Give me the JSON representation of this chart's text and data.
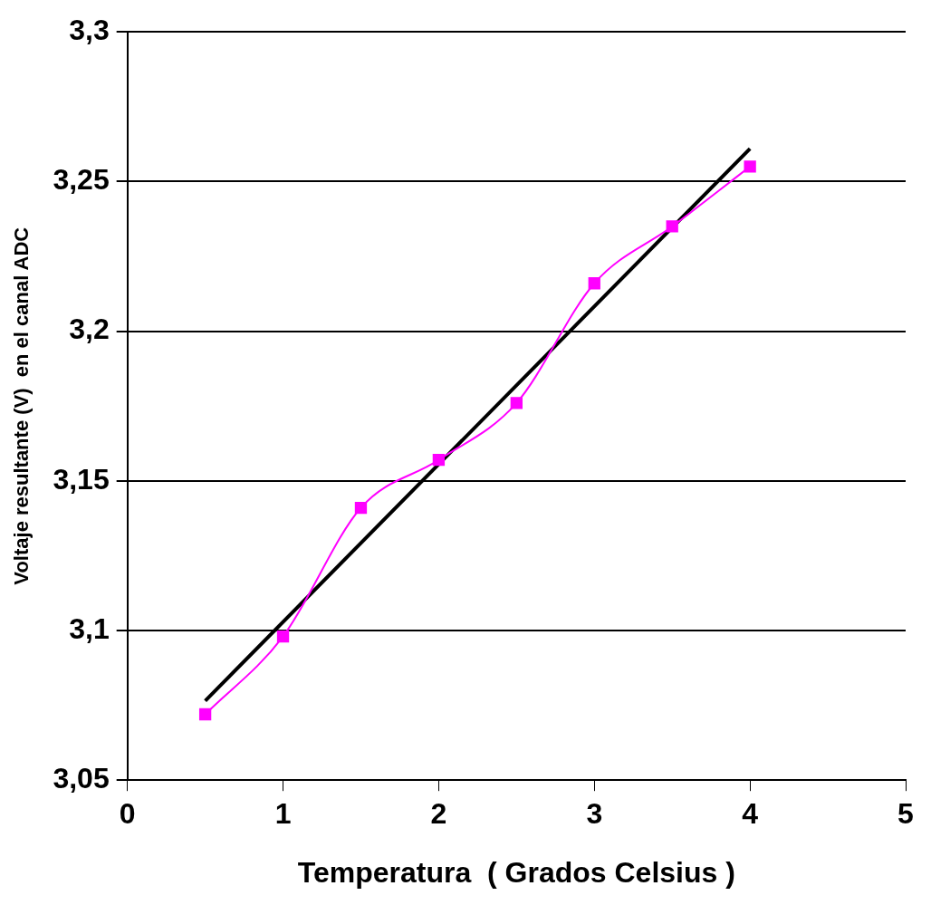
{
  "chart_data": {
    "type": "line",
    "xlabel": "Temperatura  ( Grados Celsius )",
    "ylabel": "Voltaje resultante (V)  en el canal ADC",
    "xlim": [
      0,
      5
    ],
    "xticks": [
      0,
      1,
      2,
      3,
      4,
      5
    ],
    "ylim": [
      3.05,
      3.3
    ],
    "yticks": [
      {
        "value": 3.05,
        "label": "3,05"
      },
      {
        "value": 3.1,
        "label": "3,1"
      },
      {
        "value": 3.15,
        "label": "3,15"
      },
      {
        "value": 3.2,
        "label": "3,2"
      },
      {
        "value": 3.25,
        "label": "3,25"
      },
      {
        "value": 3.3,
        "label": "3,3"
      }
    ],
    "grid": "y",
    "legend": false,
    "series": [
      {
        "color": "#ff00ff",
        "marker": "square",
        "x": [
          0.5,
          1,
          1.5,
          2,
          2.5,
          3,
          3.5,
          4
        ],
        "values": [
          3.072,
          3.098,
          3.141,
          3.157,
          3.176,
          3.216,
          3.235,
          3.255
        ]
      },
      {
        "color": "#000000",
        "marker": "none",
        "x": [
          0.5,
          4
        ],
        "values": [
          3.0765,
          3.261
        ]
      }
    ]
  }
}
